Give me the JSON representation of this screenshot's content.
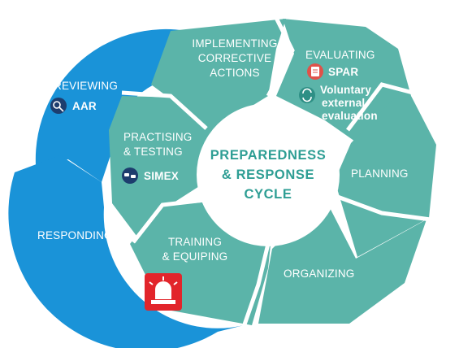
{
  "colors": {
    "blue": "#1a93d8",
    "teal": "#5bb4a9",
    "center_text": "#2e9e94",
    "alarm_red": "#e2252b",
    "spar_red": "#e0524a",
    "icon_teal": "#2e8f85",
    "icon_navy": "#1d3d6e"
  },
  "center": {
    "line1": "PREPAREDNESS",
    "line2": "& RESPONSE",
    "line3": "CYCLE"
  },
  "outer_cycle": {
    "reviewing": "REVIEWING",
    "aar": "AAR",
    "responding": "RESPONDING"
  },
  "inner_cycle": {
    "implementing": [
      "IMPLEMENTING",
      "CORRECTIVE",
      "ACTIONS"
    ],
    "evaluating": "EVALUATING",
    "spar": "SPAR",
    "voluntary": [
      "Voluntary",
      "external",
      "evaluation"
    ],
    "practising": [
      "PRACTISING",
      "& TESTING"
    ],
    "simex": "SIMEX",
    "planning": "PLANNING",
    "training": [
      "TRAINING",
      "& EQUIPING"
    ],
    "organizing": "ORGANIZING"
  },
  "icons": {
    "aar": "magnifier-loop-icon",
    "spar": "clipboard-icon",
    "voluntary": "refresh-arrows-icon",
    "simex": "cars-icon",
    "alarm": "siren-alarm-icon"
  }
}
